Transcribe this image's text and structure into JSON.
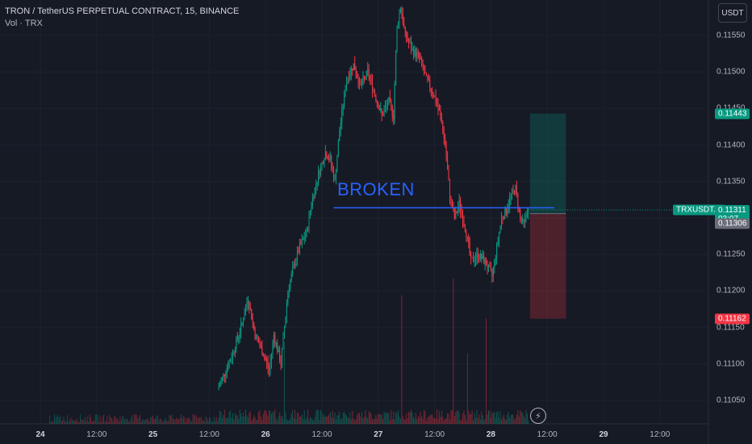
{
  "header": {
    "symbol_line": "TRON / TetherUS PERPETUAL CONTRACT, 15, BINANCE",
    "volume_line": "Vol · TRX",
    "currency_button": "USDT"
  },
  "annotation": {
    "text": "BROKEN",
    "level": 0.11314,
    "color": "#2962ff"
  },
  "price_tags": {
    "target": {
      "label": "0.11443",
      "value": 0.11443,
      "color": "#089981"
    },
    "symbol": {
      "label": "TRXUSDT.P",
      "value": 0.11311,
      "color": "#089981"
    },
    "last_price": {
      "label": "0.11311",
      "value": 0.11311,
      "color": "#089981"
    },
    "countdown": {
      "label": "03:07",
      "color": "#089981"
    },
    "entry": {
      "label": "0.11306",
      "value": 0.11306,
      "color": "#6a6d78"
    },
    "stop": {
      "label": "0.11162",
      "value": 0.11162,
      "color": "#f23645"
    }
  },
  "colors": {
    "up": "#089981",
    "down": "#f23645",
    "background": "#161a25",
    "grid": "#1f2330"
  },
  "footer": {
    "bolt_icon": "⚡"
  },
  "chart_data": {
    "type": "candlestick",
    "title": "TRON / TetherUS PERPETUAL CONTRACT, 15, BINANCE",
    "y_ticks": [
      "0.11550",
      "0.11500",
      "0.11450",
      "0.11400",
      "0.11350",
      "0.11300",
      "0.11250",
      "0.11200",
      "0.11150",
      "0.11100",
      "0.11050"
    ],
    "y_tick_values": [
      0.1155,
      0.115,
      0.1145,
      0.114,
      0.1135,
      0.113,
      0.1125,
      0.112,
      0.1115,
      0.111,
      0.1105
    ],
    "ylim": [
      0.1102,
      0.116
    ],
    "x_ticks": [
      {
        "label": "24",
        "bold": true,
        "t": 0
      },
      {
        "label": "12:00",
        "bold": false,
        "t": 12
      },
      {
        "label": "25",
        "bold": true,
        "t": 24
      },
      {
        "label": "12:00",
        "bold": false,
        "t": 36
      },
      {
        "label": "26",
        "bold": true,
        "t": 48
      },
      {
        "label": "12:00",
        "bold": false,
        "t": 60
      },
      {
        "label": "27",
        "bold": true,
        "t": 72
      },
      {
        "label": "12:00",
        "bold": false,
        "t": 84
      },
      {
        "label": "28",
        "bold": true,
        "t": 96
      },
      {
        "label": "12:00",
        "bold": false,
        "t": 108
      },
      {
        "label": "29",
        "bold": true,
        "t": 120
      },
      {
        "label": "12:00",
        "bold": false,
        "t": 132
      }
    ],
    "price_path": [
      [
        38,
        0.11065
      ],
      [
        41,
        0.1111
      ],
      [
        43,
        0.1115
      ],
      [
        44.5,
        0.1119
      ],
      [
        46,
        0.1114
      ],
      [
        48,
        0.1111
      ],
      [
        49,
        0.1109
      ],
      [
        50,
        0.1114
      ],
      [
        51.5,
        0.111
      ],
      [
        53,
        0.112
      ],
      [
        54.5,
        0.1124
      ],
      [
        55.5,
        0.1126
      ],
      [
        57,
        0.1128
      ],
      [
        58,
        0.1132
      ],
      [
        59.5,
        0.1136
      ],
      [
        61,
        0.1139
      ],
      [
        62,
        0.1138
      ],
      [
        63,
        0.1135
      ],
      [
        64,
        0.1142
      ],
      [
        65.5,
        0.1149
      ],
      [
        67,
        0.1151
      ],
      [
        68.5,
        0.1148
      ],
      [
        70,
        0.115
      ],
      [
        71.5,
        0.1147
      ],
      [
        73,
        0.1144
      ],
      [
        74.5,
        0.1146
      ],
      [
        75.5,
        0.1144
      ],
      [
        76.2,
        0.1156
      ],
      [
        77,
        0.1159
      ],
      [
        78,
        0.1155
      ],
      [
        79.5,
        0.1153
      ],
      [
        81,
        0.1152
      ],
      [
        82.5,
        0.1149
      ],
      [
        84,
        0.1147
      ],
      [
        85.5,
        0.1144
      ],
      [
        86.5,
        0.114
      ],
      [
        87.5,
        0.1133
      ],
      [
        88.5,
        0.113
      ],
      [
        89.5,
        0.1132
      ],
      [
        91,
        0.1128
      ],
      [
        92,
        0.1124
      ],
      [
        93.5,
        0.1125
      ],
      [
        95,
        0.1124
      ],
      [
        96.5,
        0.1122
      ],
      [
        97.5,
        0.1126
      ],
      [
        98.5,
        0.113
      ],
      [
        99.5,
        0.1131
      ],
      [
        100.5,
        0.1133
      ],
      [
        101.5,
        0.1134
      ],
      [
        102.5,
        0.113
      ],
      [
        103.2,
        0.1129
      ],
      [
        104,
        0.1131
      ]
    ],
    "volume_spikes": [
      {
        "t": 77,
        "rel": 0.55
      },
      {
        "t": 88,
        "rel": 0.62
      },
      {
        "t": 91,
        "rel": 0.3
      },
      {
        "t": 95,
        "rel": 0.45
      },
      {
        "t": 52,
        "rel": 0.35
      }
    ],
    "position": {
      "entry": 0.11306,
      "target": 0.11443,
      "stop": 0.11162,
      "t_start": 104,
      "t_end": 112
    }
  }
}
